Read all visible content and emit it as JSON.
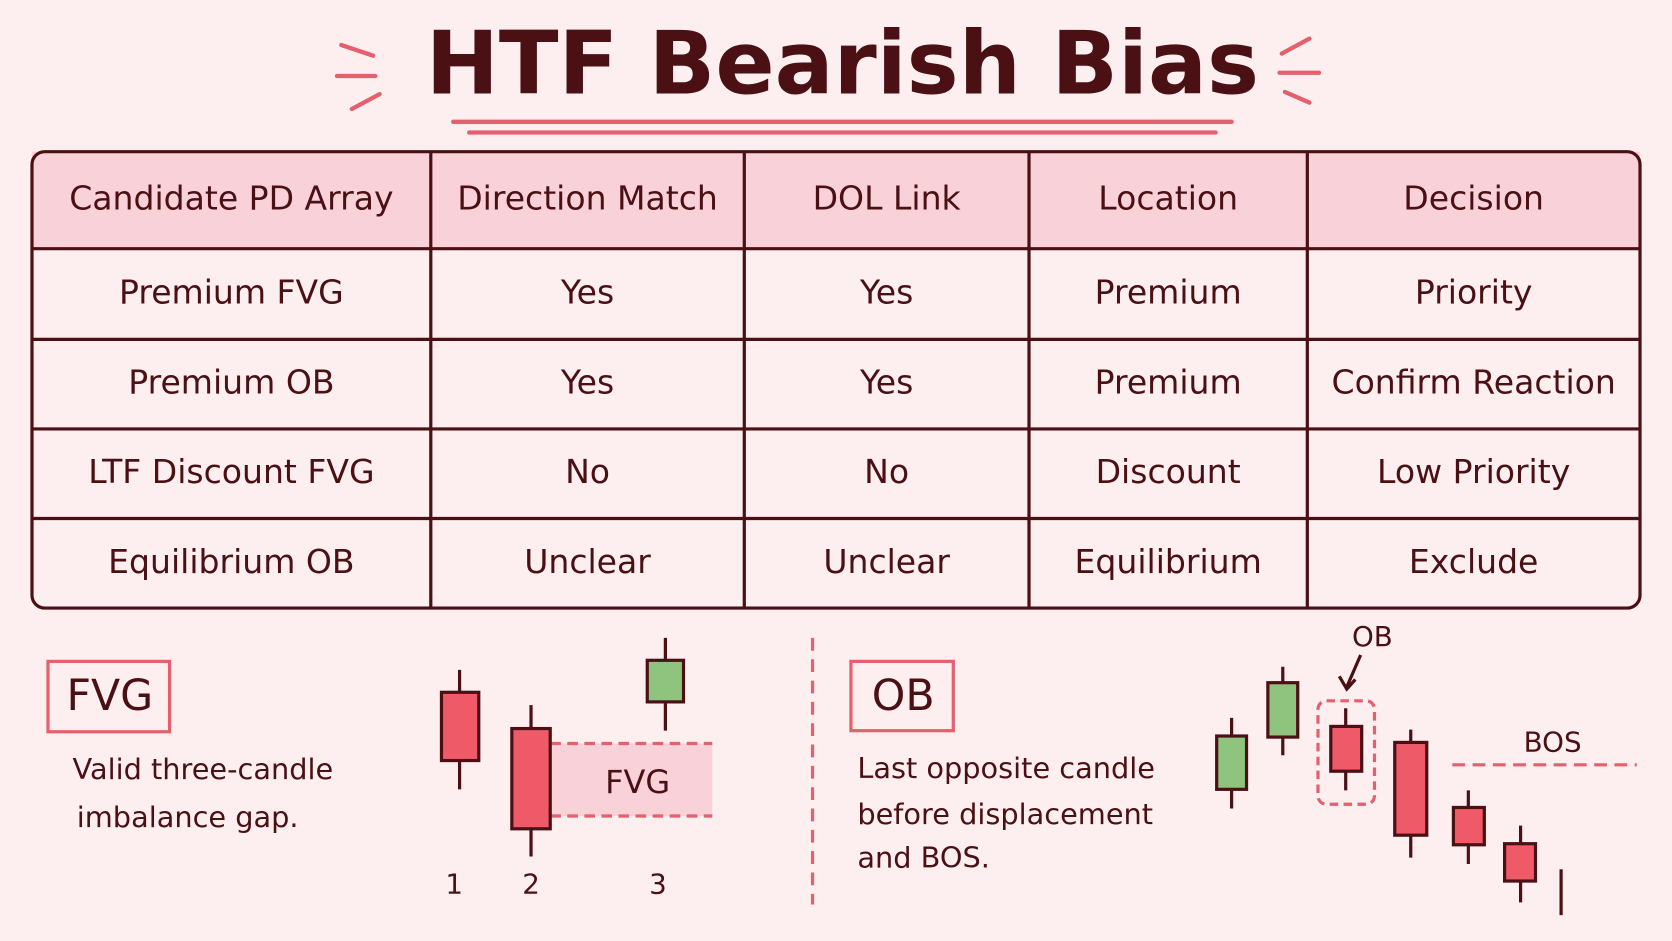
{
  "title": "HTF Bearish Bias",
  "table": {
    "headers": [
      "Candidate PD Array",
      "Direction Match",
      "DOL Link",
      "Location",
      "Decision"
    ],
    "rows": [
      [
        "Premium FVG",
        "Yes",
        "Yes",
        "Premium",
        "Priority"
      ],
      [
        "Premium OB",
        "Yes",
        "Yes",
        "Premium",
        "Confirm Reaction"
      ],
      [
        "LTF Discount FVG",
        "No",
        "No",
        "Discount",
        "Low Priority"
      ],
      [
        "Equilibrium OB",
        "Unclear",
        "Unclear",
        "Equilibrium",
        "Exclude"
      ]
    ]
  },
  "fvg_panel": {
    "label": "FVG",
    "description": [
      "Valid three-candle",
      "imbalance gap."
    ],
    "gap_label": "FVG",
    "candle_labels": [
      "1",
      "2",
      "3"
    ]
  },
  "ob_panel": {
    "label": "OB",
    "description": [
      "Last opposite candle",
      "before displacement",
      "and BOS."
    ],
    "ob_label": "OB",
    "bos_label": "BOS"
  }
}
